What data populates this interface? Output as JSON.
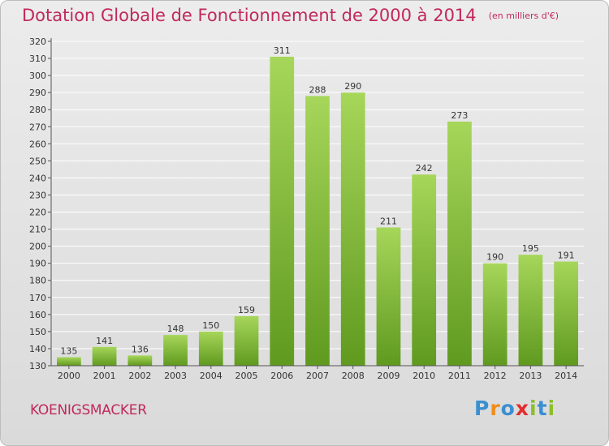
{
  "header": {
    "title": "Dotation Globale de Fonctionnement de 2000 à 2014",
    "unit": "(en milliers d'€)"
  },
  "commune": "KOENIGSMACKER",
  "logo": {
    "text": "Proxiti",
    "letters": [
      "P",
      "r",
      "o",
      "x",
      "i",
      "t",
      "i"
    ],
    "colors": [
      "#3a8fd1",
      "#f08c1a",
      "#3a8fd1",
      "#e32d2d",
      "#8bbf2a",
      "#3a8fd1",
      "#8bbf2a"
    ]
  },
  "chart_data": {
    "type": "bar",
    "title": "Dotation Globale de Fonctionnement de 2000 à 2014",
    "subtitle": "(en milliers d'€)",
    "xlabel": "",
    "ylabel": "",
    "categories": [
      "2000",
      "2001",
      "2002",
      "2003",
      "2004",
      "2005",
      "2006",
      "2007",
      "2008",
      "2009",
      "2010",
      "2011",
      "2012",
      "2013",
      "2014"
    ],
    "values": [
      135,
      141,
      136,
      148,
      150,
      159,
      311,
      288,
      290,
      211,
      242,
      273,
      190,
      195,
      191
    ],
    "ylim": [
      130,
      320
    ],
    "yticks": [
      130,
      140,
      150,
      160,
      170,
      180,
      190,
      200,
      210,
      220,
      230,
      240,
      250,
      260,
      270,
      280,
      290,
      300,
      310,
      320
    ],
    "grid": true,
    "bar_color": "#7cb82f",
    "bar_color_light": "#a6d65a",
    "bar_color_dark": "#5f9a1f"
  }
}
